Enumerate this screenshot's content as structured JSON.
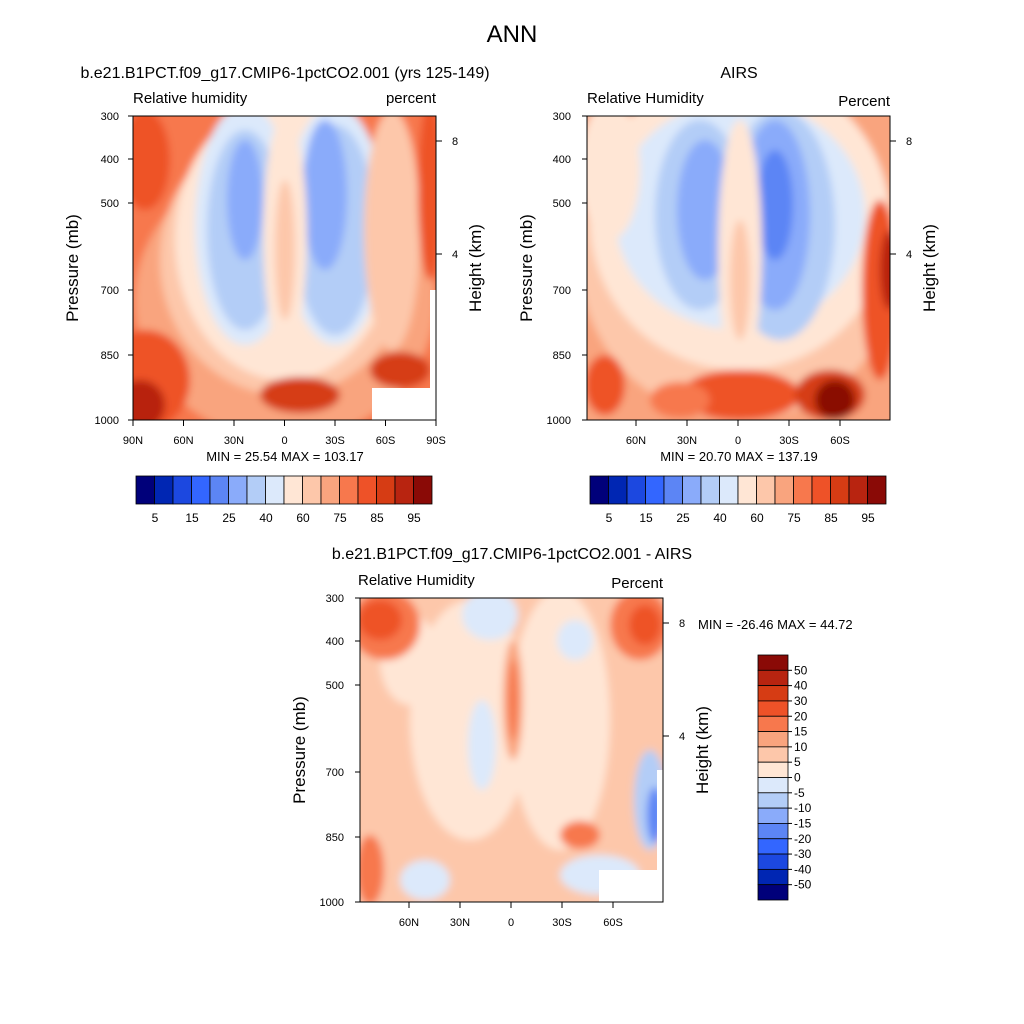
{
  "figure": {
    "title": "ANN",
    "colorbar_labels": [
      "5",
      "15",
      "25",
      "40",
      "60",
      "75",
      "85",
      "95"
    ]
  },
  "chart_data": [
    {
      "type": "heatmap",
      "title": "b.e21.B1PCT.f09_g17.CMIP6-1pctCO2.001 (yrs 125-149)",
      "left_subtitle": "Relative humidity",
      "right_subtitle": "percent",
      "xlabel": "",
      "ylabel": "Pressure (mb)",
      "right_ylabel": "Height (km)",
      "x_ticks": [
        "90N",
        "60N",
        "30N",
        "0",
        "30S",
        "60S",
        "90S"
      ],
      "y_ticks": [
        "300",
        "400",
        "500",
        "700",
        "850",
        "1000"
      ],
      "height_ticks": [
        "8",
        "4"
      ],
      "stats": "MIN =  25.54  MAX = 103.17",
      "min": 25.54,
      "max": 103.17,
      "contour_levels": [
        5,
        10,
        15,
        20,
        25,
        30,
        40,
        50,
        60,
        65,
        70,
        75,
        80,
        85,
        90,
        95
      ]
    },
    {
      "type": "heatmap",
      "title": "AIRS",
      "left_subtitle": "Relative Humidity",
      "right_subtitle": "Percent",
      "xlabel": "",
      "ylabel": "Pressure (mb)",
      "right_ylabel": "Height (km)",
      "x_ticks": [
        "60N",
        "30N",
        "0",
        "30S",
        "60S"
      ],
      "y_ticks": [
        "300",
        "400",
        "500",
        "700",
        "850",
        "1000"
      ],
      "height_ticks": [
        "8",
        "4"
      ],
      "stats": "MIN =  20.70  MAX = 137.19",
      "min": 20.7,
      "max": 137.19,
      "contour_levels": [
        5,
        10,
        15,
        20,
        25,
        30,
        40,
        50,
        60,
        65,
        70,
        75,
        80,
        85,
        90,
        95
      ]
    },
    {
      "type": "heatmap",
      "title": "b.e21.B1PCT.f09_g17.CMIP6-1pctCO2.001 - AIRS",
      "left_subtitle": "Relative Humidity",
      "right_subtitle": "Percent",
      "xlabel": "",
      "ylabel": "Pressure (mb)",
      "right_ylabel": "Height (km)",
      "x_ticks": [
        "60N",
        "30N",
        "0",
        "30S",
        "60S"
      ],
      "y_ticks": [
        "300",
        "400",
        "500",
        "700",
        "850",
        "1000"
      ],
      "height_ticks": [
        "8",
        "4"
      ],
      "stats": "MIN = -26.46  MAX =  44.72",
      "min": -26.46,
      "max": 44.72,
      "contour_levels": [
        -50,
        -40,
        -30,
        -20,
        -15,
        -10,
        -5,
        0,
        5,
        10,
        15,
        20,
        30,
        40,
        50
      ],
      "colorbar_labels": [
        "50",
        "40",
        "30",
        "20",
        "15",
        "10",
        "5",
        "0",
        "-5",
        "-10",
        "-15",
        "-20",
        "-30",
        "-40",
        "-50"
      ]
    }
  ],
  "colors": {
    "abs_palette": [
      "#00007a",
      "#0026b3",
      "#1c48e0",
      "#3366ff",
      "#5c85f5",
      "#8aabfa",
      "#b3cdf7",
      "#dce9fb",
      "#ffe6d5",
      "#fdc7aa",
      "#f9a47e",
      "#f7784d",
      "#ee5228",
      "#d63c14",
      "#b82410",
      "#8a0a06"
    ],
    "diff_palette": [
      "#00007a",
      "#0026b3",
      "#1c48e0",
      "#3366ff",
      "#5c85f5",
      "#8aabfa",
      "#b3cdf7",
      "#dce9fb",
      "#ffe6d5",
      "#fdc7aa",
      "#f9a47e",
      "#f7784d",
      "#ee5228",
      "#d63c14",
      "#b82410",
      "#8a0a06"
    ]
  }
}
